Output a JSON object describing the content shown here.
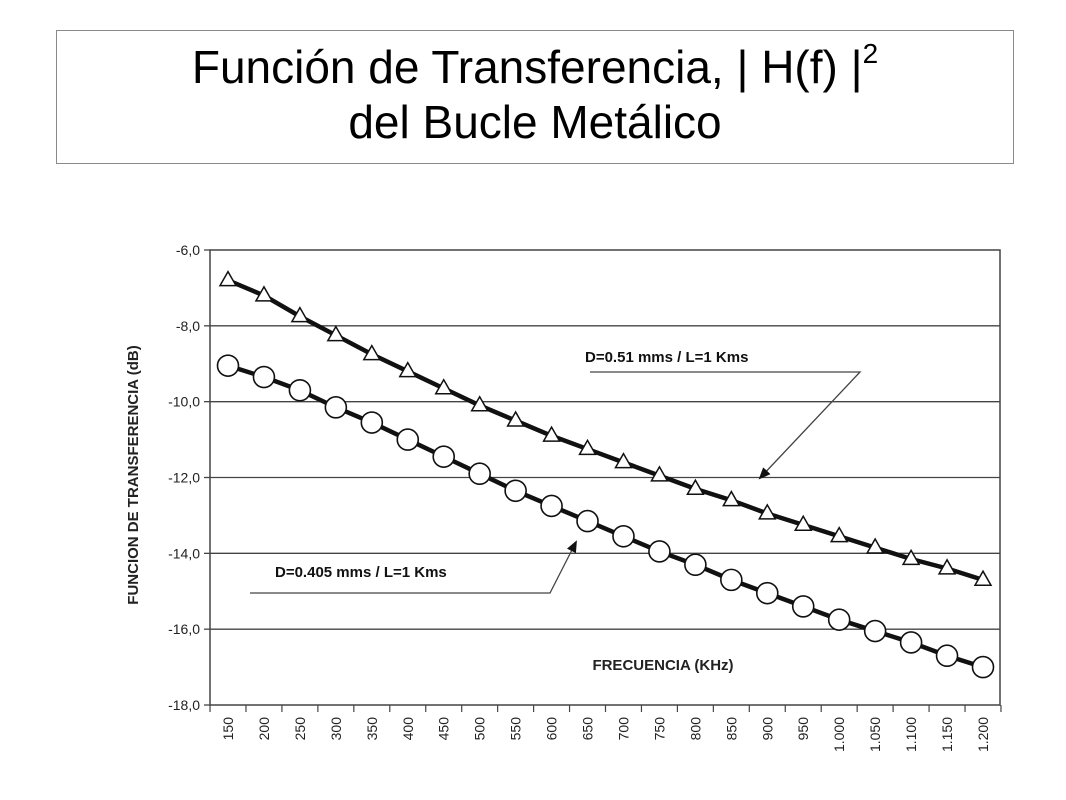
{
  "title": {
    "line1": "Función de Transferencia, | H(f) |",
    "sup": "2",
    "line2": "del Bucle Metálico"
  },
  "chart_data": {
    "type": "line",
    "ylabel": "FUNCION DE TRANSFERENCIA (dB)",
    "xlabel": "FRECUENCIA (KHz)",
    "ylim": [
      -18,
      -6
    ],
    "yticks": [
      -6,
      -8,
      -10,
      -12,
      -14,
      -16,
      -18
    ],
    "ytick_labels": [
      "-6,0",
      "-8,0",
      "-10,0",
      "-12,0",
      "-14,0",
      "-16,0",
      "-18,0"
    ],
    "categories": [
      "150",
      "200",
      "250",
      "300",
      "350",
      "400",
      "450",
      "500",
      "550",
      "600",
      "650",
      "700",
      "750",
      "800",
      "850",
      "900",
      "950",
      "1.000",
      "1.050",
      "1.100",
      "1.150",
      "1.200"
    ],
    "grid": "horizontal",
    "series": [
      {
        "name": "D=0.51 mms / L=1 Kms",
        "marker": "triangle",
        "values": [
          -6.8,
          -7.2,
          -7.75,
          -8.25,
          -8.75,
          -9.2,
          -9.65,
          -10.1,
          -10.5,
          -10.9,
          -11.25,
          -11.6,
          -11.95,
          -12.3,
          -12.6,
          -12.95,
          -13.25,
          -13.55,
          -13.85,
          -14.15,
          -14.4,
          -14.7
        ]
      },
      {
        "name": "D=0.405 mms / L=1 Kms",
        "marker": "circle",
        "values": [
          -9.05,
          -9.35,
          -9.7,
          -10.15,
          -10.55,
          -11.0,
          -11.45,
          -11.9,
          -12.35,
          -12.75,
          -13.15,
          -13.55,
          -13.95,
          -14.3,
          -14.7,
          -15.05,
          -15.4,
          -15.75,
          -16.05,
          -16.35,
          -16.7,
          -17.0
        ]
      }
    ]
  }
}
